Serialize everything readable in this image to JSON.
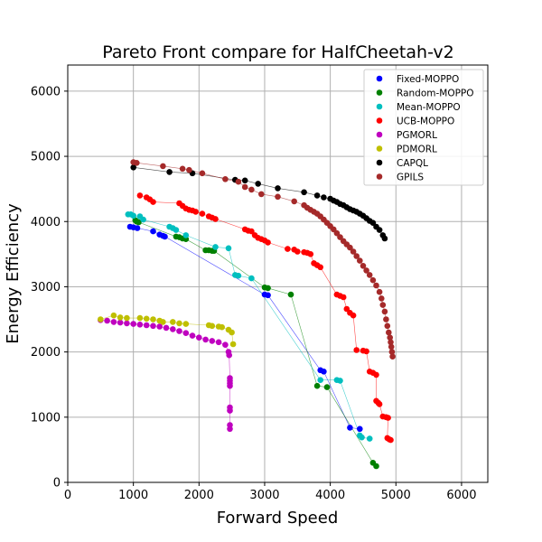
{
  "chart_data": {
    "type": "scatter",
    "title": "Pareto Front compare for HalfCheetah-v2",
    "xlabel": "Forward Speed",
    "ylabel": "Energy Efficiency",
    "xlim": [
      0,
      6400
    ],
    "ylim": [
      0,
      6400
    ],
    "xticks": [
      "0",
      "1000",
      "2000",
      "3000",
      "4000",
      "5000",
      "6000"
    ],
    "yticks": [
      "0",
      "1000",
      "2000",
      "3000",
      "4000",
      "5000",
      "6000"
    ],
    "grid": true,
    "legend_position": "top-right",
    "series": [
      {
        "name": "Fixed-MOPPO",
        "color": "#0000ff",
        "points": [
          [
            950,
            3920
          ],
          [
            1000,
            3910
          ],
          [
            1060,
            3900
          ],
          [
            1300,
            3850
          ],
          [
            1400,
            3800
          ],
          [
            1450,
            3780
          ],
          [
            1480,
            3770
          ],
          [
            3000,
            2880
          ],
          [
            3050,
            2870
          ],
          [
            3850,
            1720
          ],
          [
            3900,
            1700
          ],
          [
            4300,
            840
          ],
          [
            4450,
            820
          ]
        ]
      },
      {
        "name": "Random-MOPPO",
        "color": "#008000",
        "points": [
          [
            1030,
            4020
          ],
          [
            1050,
            4000
          ],
          [
            1080,
            3990
          ],
          [
            1650,
            3770
          ],
          [
            1700,
            3760
          ],
          [
            1750,
            3740
          ],
          [
            1800,
            3730
          ],
          [
            2100,
            3560
          ],
          [
            2150,
            3560
          ],
          [
            2200,
            3550
          ],
          [
            2230,
            3550
          ],
          [
            3000,
            2990
          ],
          [
            3050,
            2980
          ],
          [
            3400,
            2880
          ],
          [
            3800,
            1480
          ],
          [
            3950,
            1460
          ],
          [
            4650,
            300
          ],
          [
            4700,
            250
          ]
        ]
      },
      {
        "name": "Mean-MOPPO",
        "color": "#00bfbf",
        "points": [
          [
            920,
            4110
          ],
          [
            960,
            4110
          ],
          [
            1000,
            4090
          ],
          [
            1100,
            4080
          ],
          [
            1150,
            4030
          ],
          [
            1550,
            3920
          ],
          [
            1600,
            3900
          ],
          [
            1650,
            3870
          ],
          [
            1800,
            3790
          ],
          [
            2250,
            3610
          ],
          [
            2450,
            3590
          ],
          [
            2550,
            3180
          ],
          [
            2600,
            3170
          ],
          [
            2800,
            3130
          ],
          [
            3850,
            1570
          ],
          [
            4100,
            1570
          ],
          [
            4150,
            1560
          ],
          [
            4450,
            720
          ],
          [
            4480,
            690
          ],
          [
            4600,
            670
          ]
        ]
      },
      {
        "name": "UCB-MOPPO",
        "color": "#ff0000",
        "points": [
          [
            1100,
            4400
          ],
          [
            1200,
            4370
          ],
          [
            1250,
            4340
          ],
          [
            1300,
            4300
          ],
          [
            1700,
            4280
          ],
          [
            1750,
            4240
          ],
          [
            1800,
            4200
          ],
          [
            1850,
            4180
          ],
          [
            1900,
            4170
          ],
          [
            1950,
            4150
          ],
          [
            2050,
            4120
          ],
          [
            2150,
            4080
          ],
          [
            2200,
            4060
          ],
          [
            2250,
            4040
          ],
          [
            2700,
            3880
          ],
          [
            2750,
            3860
          ],
          [
            2800,
            3850
          ],
          [
            2850,
            3790
          ],
          [
            2900,
            3750
          ],
          [
            2950,
            3730
          ],
          [
            3000,
            3710
          ],
          [
            3050,
            3680
          ],
          [
            3350,
            3580
          ],
          [
            3450,
            3570
          ],
          [
            3500,
            3540
          ],
          [
            3600,
            3530
          ],
          [
            3650,
            3520
          ],
          [
            3700,
            3500
          ],
          [
            3750,
            3360
          ],
          [
            3800,
            3330
          ],
          [
            3850,
            3300
          ],
          [
            4100,
            2880
          ],
          [
            4150,
            2860
          ],
          [
            4200,
            2840
          ],
          [
            4250,
            2660
          ],
          [
            4300,
            2600
          ],
          [
            4350,
            2560
          ],
          [
            4400,
            2030
          ],
          [
            4500,
            2020
          ],
          [
            4550,
            2010
          ],
          [
            4600,
            1700
          ],
          [
            4650,
            1680
          ],
          [
            4700,
            1650
          ],
          [
            4700,
            1250
          ],
          [
            4730,
            1220
          ],
          [
            4750,
            1200
          ],
          [
            4800,
            1010
          ],
          [
            4850,
            1000
          ],
          [
            4880,
            990
          ],
          [
            4870,
            680
          ],
          [
            4900,
            660
          ],
          [
            4920,
            650
          ]
        ]
      },
      {
        "name": "PGMORL",
        "color": "#bf00bf",
        "points": [
          [
            500,
            2490
          ],
          [
            600,
            2480
          ],
          [
            700,
            2460
          ],
          [
            800,
            2450
          ],
          [
            900,
            2440
          ],
          [
            1000,
            2430
          ],
          [
            1100,
            2420
          ],
          [
            1200,
            2410
          ],
          [
            1300,
            2400
          ],
          [
            1400,
            2390
          ],
          [
            1500,
            2370
          ],
          [
            1600,
            2350
          ],
          [
            1700,
            2320
          ],
          [
            1800,
            2290
          ],
          [
            1900,
            2250
          ],
          [
            2000,
            2220
          ],
          [
            2100,
            2190
          ],
          [
            2200,
            2170
          ],
          [
            2300,
            2150
          ],
          [
            2400,
            2110
          ],
          [
            2450,
            2000
          ],
          [
            2460,
            1950
          ],
          [
            2470,
            1600
          ],
          [
            2470,
            1560
          ],
          [
            2470,
            1520
          ],
          [
            2470,
            1480
          ],
          [
            2470,
            1150
          ],
          [
            2470,
            1100
          ],
          [
            2470,
            880
          ],
          [
            2470,
            820
          ]
        ]
      },
      {
        "name": "PDMORL",
        "color": "#bfbf00",
        "points": [
          [
            500,
            2500
          ],
          [
            700,
            2560
          ],
          [
            800,
            2530
          ],
          [
            900,
            2520
          ],
          [
            1100,
            2520
          ],
          [
            1200,
            2510
          ],
          [
            1300,
            2500
          ],
          [
            1400,
            2480
          ],
          [
            1450,
            2460
          ],
          [
            1600,
            2460
          ],
          [
            1700,
            2440
          ],
          [
            1800,
            2430
          ],
          [
            2150,
            2410
          ],
          [
            2200,
            2400
          ],
          [
            2300,
            2390
          ],
          [
            2350,
            2380
          ],
          [
            2450,
            2340
          ],
          [
            2500,
            2300
          ],
          [
            2520,
            2120
          ]
        ]
      },
      {
        "name": "CAPQL",
        "color": "#000000",
        "points": [
          [
            1000,
            4830
          ],
          [
            1550,
            4760
          ],
          [
            1900,
            4740
          ],
          [
            2550,
            4640
          ],
          [
            2700,
            4630
          ],
          [
            2900,
            4580
          ],
          [
            3200,
            4510
          ],
          [
            3600,
            4450
          ],
          [
            3800,
            4400
          ],
          [
            3900,
            4370
          ],
          [
            4000,
            4350
          ],
          [
            4050,
            4320
          ],
          [
            4100,
            4300
          ],
          [
            4150,
            4270
          ],
          [
            4200,
            4250
          ],
          [
            4250,
            4220
          ],
          [
            4300,
            4190
          ],
          [
            4350,
            4170
          ],
          [
            4400,
            4150
          ],
          [
            4450,
            4120
          ],
          [
            4500,
            4090
          ],
          [
            4550,
            4050
          ],
          [
            4600,
            4010
          ],
          [
            4650,
            3980
          ],
          [
            4700,
            3920
          ],
          [
            4750,
            3870
          ],
          [
            4800,
            3790
          ],
          [
            4830,
            3740
          ]
        ]
      },
      {
        "name": "GPILS",
        "color": "#a52a2a",
        "points": [
          [
            1000,
            4910
          ],
          [
            1050,
            4900
          ],
          [
            1450,
            4850
          ],
          [
            1750,
            4810
          ],
          [
            1850,
            4790
          ],
          [
            2050,
            4740
          ],
          [
            2400,
            4650
          ],
          [
            2600,
            4610
          ],
          [
            2700,
            4530
          ],
          [
            2800,
            4490
          ],
          [
            2950,
            4420
          ],
          [
            3200,
            4380
          ],
          [
            3450,
            4310
          ],
          [
            3600,
            4250
          ],
          [
            3650,
            4210
          ],
          [
            3700,
            4180
          ],
          [
            3750,
            4150
          ],
          [
            3800,
            4120
          ],
          [
            3850,
            4080
          ],
          [
            3900,
            4030
          ],
          [
            3950,
            3980
          ],
          [
            4000,
            3930
          ],
          [
            4050,
            3880
          ],
          [
            4100,
            3820
          ],
          [
            4150,
            3760
          ],
          [
            4200,
            3700
          ],
          [
            4250,
            3650
          ],
          [
            4300,
            3600
          ],
          [
            4350,
            3540
          ],
          [
            4400,
            3470
          ],
          [
            4450,
            3400
          ],
          [
            4500,
            3320
          ],
          [
            4550,
            3250
          ],
          [
            4600,
            3180
          ],
          [
            4650,
            3100
          ],
          [
            4700,
            3020
          ],
          [
            4750,
            2920
          ],
          [
            4780,
            2820
          ],
          [
            4800,
            2720
          ],
          [
            4830,
            2620
          ],
          [
            4850,
            2500
          ],
          [
            4870,
            2400
          ],
          [
            4890,
            2300
          ],
          [
            4910,
            2220
          ],
          [
            4920,
            2150
          ],
          [
            4930,
            2080
          ],
          [
            4940,
            2000
          ],
          [
            4950,
            1930
          ]
        ]
      }
    ]
  }
}
